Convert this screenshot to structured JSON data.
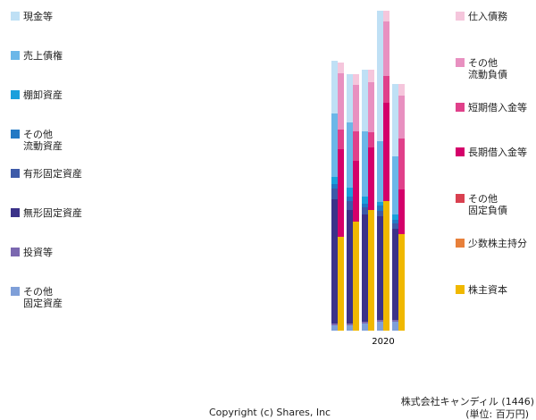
{
  "chart_data": {
    "type": "bar",
    "title": "株式会社キャンディル (1446)",
    "subtitle": "(単位: 百万円)",
    "copyright": "Copyright (c) Shares, Inc",
    "categories": [
      null,
      null,
      null,
      "2020",
      null
    ],
    "series": [
      {
        "name": "現金等",
        "color": "#bfe0f5",
        "stack": "assets",
        "values": [
          59,
          54,
          69,
          146,
          81
        ]
      },
      {
        "name": "売上債権",
        "color": "#6bb7e8",
        "stack": "assets",
        "values": [
          71,
          73,
          73,
          68,
          65
        ]
      },
      {
        "name": "棚卸資産",
        "color": "#1aa0dc",
        "stack": "assets",
        "values": [
          8,
          10,
          8,
          4,
          6
        ]
      },
      {
        "name": "その他\n流動資産",
        "color": "#2379c4",
        "stack": "assets",
        "values": [
          5,
          5,
          4,
          6,
          4
        ]
      },
      {
        "name": "有形固定資産",
        "color": "#3d5aa8",
        "stack": "assets",
        "values": [
          12,
          10,
          8,
          6,
          6
        ]
      },
      {
        "name": "無形固定資産",
        "color": "#3b3289",
        "stack": "assets",
        "values": [
          139,
          127,
          120,
          116,
          102
        ]
      },
      {
        "name": "投資等",
        "color": "#7b68b0",
        "stack": "assets",
        "values": [
          2,
          2,
          2,
          2,
          2
        ]
      },
      {
        "name": "その他\n固定資産",
        "color": "#7f9fd8",
        "stack": "assets",
        "values": [
          6,
          6,
          8,
          10,
          10
        ]
      },
      {
        "name": "仕入債務",
        "color": "#f5c6dc",
        "stack": "liabilities",
        "values": [
          12,
          12,
          14,
          12,
          13
        ]
      },
      {
        "name": "その他\n流動負債",
        "color": "#e890c0",
        "stack": "liabilities",
        "values": [
          63,
          52,
          56,
          61,
          48
        ]
      },
      {
        "name": "短期借入金等",
        "color": "#e0408a",
        "stack": "liabilities",
        "values": [
          22,
          33,
          17,
          30,
          57
        ]
      },
      {
        "name": "長期借入金等",
        "color": "#d4006a",
        "stack": "liabilities",
        "values": [
          98,
          68,
          70,
          110,
          50
        ]
      },
      {
        "name": "その他\n固定負債",
        "color": "#d94050",
        "stack": "liabilities",
        "values": [
          0,
          0,
          0,
          0,
          0
        ]
      },
      {
        "name": "少数株主持分",
        "color": "#e8803a",
        "stack": "liabilities",
        "values": [
          0,
          0,
          0,
          0,
          0
        ]
      },
      {
        "name": "株主資本",
        "color": "#f0b800",
        "stack": "liabilities",
        "values": [
          105,
          122,
          135,
          145,
          108
        ]
      }
    ]
  }
}
